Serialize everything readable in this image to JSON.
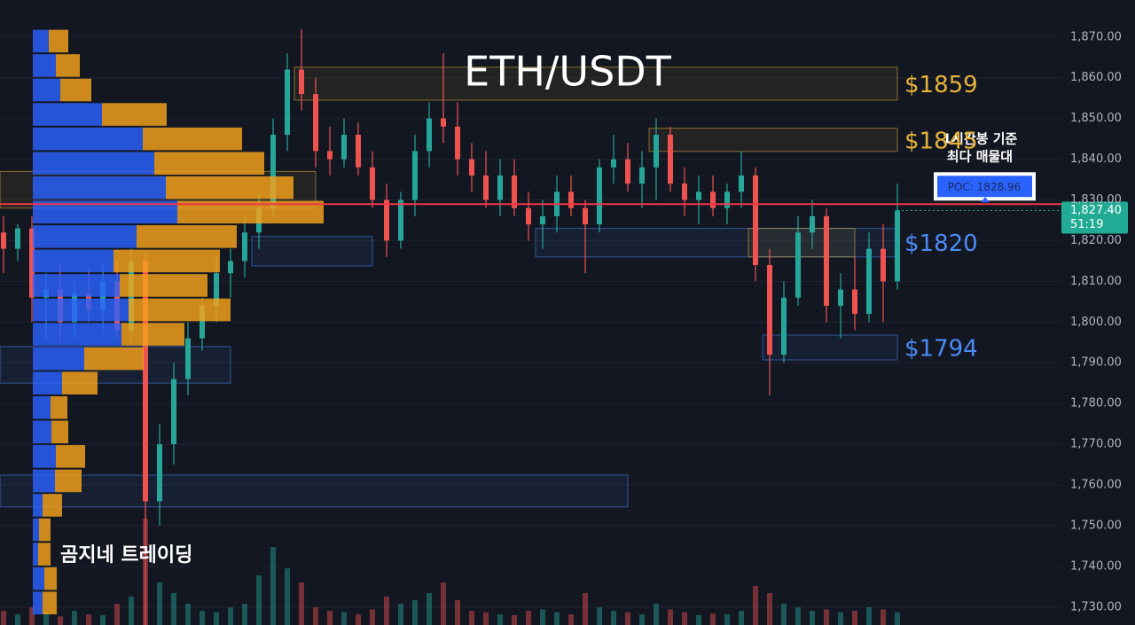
{
  "chart_data": {
    "type": "candlestick",
    "title": "ETH/USDT",
    "watermark": "곰지네 트레이딩",
    "ylim": [
      1725.6,
      1879.1
    ],
    "yticks": [
      {
        "value": 1730,
        "label": "1,730.00"
      },
      {
        "value": 1740,
        "label": "1,740.00"
      },
      {
        "value": 1750,
        "label": "1,750.00"
      },
      {
        "value": 1760,
        "label": "1,760.00"
      },
      {
        "value": 1770,
        "label": "1,770.00"
      },
      {
        "value": 1780,
        "label": "1,780.00"
      },
      {
        "value": 1790,
        "label": "1,790.00"
      },
      {
        "value": 1800,
        "label": "1,800.00"
      },
      {
        "value": 1810,
        "label": "1,810.00"
      },
      {
        "value": 1820,
        "label": "1,820.00"
      },
      {
        "value": 1830,
        "label": "1,830.00"
      },
      {
        "value": 1840,
        "label": "1,840.00"
      },
      {
        "value": 1850,
        "label": "1,850.00"
      },
      {
        "value": 1860,
        "label": "1,860.00"
      },
      {
        "value": 1870,
        "label": "1,870.00"
      }
    ],
    "grid": true,
    "up_color": "#26a69a",
    "down_color": "#ef5350",
    "open": [
      1822,
      1818,
      1823,
      1806,
      1808,
      1800,
      1807,
      1803,
      1810,
      1798,
      1815,
      1756,
      1770,
      1786,
      1796,
      1804,
      1812,
      1815,
      1822,
      1828,
      1846,
      1862,
      1856,
      1842,
      1840,
      1846,
      1838,
      1830,
      1820,
      1830,
      1842,
      1850,
      1848,
      1840,
      1836,
      1830,
      1836,
      1828,
      1824,
      1826,
      1832,
      1828,
      1824,
      1838,
      1840,
      1834,
      1838,
      1846,
      1834,
      1830,
      1832,
      1828,
      1832,
      1836,
      1814,
      1792,
      1806,
      1822,
      1826,
      1804,
      1808,
      1802,
      1818,
      1810
    ],
    "high": [
      1826,
      1824,
      1826,
      1812,
      1814,
      1810,
      1813,
      1814,
      1815,
      1818,
      1817,
      1775,
      1790,
      1800,
      1806,
      1816,
      1818,
      1826,
      1832,
      1850,
      1866,
      1872,
      1860,
      1848,
      1850,
      1849,
      1842,
      1834,
      1832,
      1846,
      1854,
      1866,
      1854,
      1844,
      1842,
      1840,
      1840,
      1832,
      1830,
      1836,
      1836,
      1830,
      1840,
      1846,
      1844,
      1842,
      1850,
      1848,
      1838,
      1836,
      1836,
      1834,
      1842,
      1838,
      1818,
      1810,
      1826,
      1830,
      1828,
      1812,
      1816,
      1822,
      1824,
      1834
    ],
    "low": [
      1812,
      1815,
      1800,
      1796,
      1795,
      1796,
      1800,
      1797,
      1796,
      1795,
      1724,
      1750,
      1765,
      1782,
      1793,
      1800,
      1806,
      1811,
      1818,
      1826,
      1842,
      1852,
      1838,
      1836,
      1838,
      1836,
      1828,
      1816,
      1818,
      1826,
      1838,
      1844,
      1836,
      1832,
      1828,
      1826,
      1826,
      1820,
      1818,
      1822,
      1826,
      1812,
      1822,
      1834,
      1832,
      1828,
      1830,
      1832,
      1826,
      1824,
      1826,
      1824,
      1828,
      1810,
      1782,
      1790,
      1804,
      1818,
      1800,
      1796,
      1798,
      1800,
      1800,
      1808
    ],
    "close": [
      1818,
      1823,
      1806,
      1808,
      1800,
      1807,
      1803,
      1810,
      1798,
      1815,
      1756,
      1770,
      1786,
      1796,
      1804,
      1812,
      1815,
      1822,
      1828,
      1846,
      1862,
      1856,
      1842,
      1840,
      1846,
      1838,
      1830,
      1820,
      1830,
      1842,
      1850,
      1848,
      1840,
      1836,
      1830,
      1836,
      1828,
      1824,
      1826,
      1832,
      1828,
      1824,
      1838,
      1840,
      1834,
      1838,
      1846,
      1834,
      1830,
      1832,
      1828,
      1832,
      1836,
      1814,
      1792,
      1806,
      1822,
      1826,
      1804,
      1808,
      1802,
      1818,
      1810,
      1827.4
    ],
    "volume": [
      20,
      15,
      25,
      18,
      12,
      20,
      15,
      14,
      30,
      40,
      150,
      60,
      45,
      30,
      20,
      18,
      25,
      30,
      70,
      110,
      80,
      60,
      25,
      20,
      18,
      15,
      22,
      40,
      30,
      35,
      45,
      60,
      35,
      20,
      18,
      15,
      14,
      20,
      22,
      18,
      15,
      45,
      25,
      20,
      18,
      15,
      30,
      22,
      18,
      14,
      16,
      15,
      20,
      55,
      45,
      30,
      25,
      20,
      22,
      18,
      20,
      25,
      22,
      18
    ],
    "volume_profile": {
      "bins": [
        1872,
        1866,
        1860,
        1854,
        1848,
        1842,
        1836,
        1830,
        1824,
        1818,
        1812,
        1806,
        1800,
        1794,
        1788,
        1782,
        1776,
        1770,
        1764,
        1758,
        1752,
        1746,
        1740,
        1734,
        1728
      ],
      "buy": [
        18,
        26,
        31,
        78,
        124,
        137,
        150,
        163,
        117,
        91,
        98,
        108,
        100,
        58,
        33,
        20,
        21,
        26,
        25,
        11,
        7,
        6,
        13,
        11
      ],
      "sell": [
        22,
        27,
        35,
        73,
        112,
        124,
        144,
        165,
        113,
        120,
        99,
        115,
        71,
        67,
        40,
        19,
        19,
        33,
        30,
        22,
        13,
        14,
        14,
        16
      ],
      "buy_color": "#2962ff",
      "sell_color": "#f7a21b"
    },
    "zones": [
      {
        "label": "$1859",
        "top": 1862.6,
        "bottom": 1854.5,
        "start": 21,
        "end": 63,
        "color": "#e8b339"
      },
      {
        "label": "$1845",
        "top": 1847.6,
        "bottom": 1841.9,
        "start": 46,
        "end": 63,
        "color": "#e8b339"
      },
      {
        "label": "$1820",
        "top": 1823,
        "bottom": 1816,
        "start": 38,
        "end": 63,
        "color": "#4b8bf5"
      },
      {
        "label": "$1794",
        "top": 1796.8,
        "bottom": 1790.7,
        "start": 54,
        "end": 63,
        "color": "#4b8bf5"
      },
      {
        "top": 1837,
        "bottom": 1828,
        "start": 0,
        "end": 22,
        "color": "#e8b339"
      },
      {
        "top": 1823,
        "bottom": 1816,
        "start": 53,
        "end": 60,
        "color": "#e8b339"
      },
      {
        "top": 1821,
        "bottom": 1813.8,
        "start": 18,
        "end": 26,
        "color": "#4b8bf5"
      },
      {
        "top": 1794,
        "bottom": 1785,
        "start": 0,
        "end": 16,
        "color": "#4b8bf5"
      },
      {
        "top": 1762.4,
        "bottom": 1754.6,
        "start": 0,
        "end": 44,
        "color": "#4b8bf5"
      }
    ],
    "poc": {
      "value": 1828.96,
      "label": "POC: 1828.96",
      "note": [
        "1시간봉 기준",
        "최다 매물대"
      ],
      "color": "#f23645"
    },
    "last_price": {
      "value": 1827.4,
      "label": "1,827.40",
      "countdown": "51:19",
      "color": "#22ab94"
    }
  }
}
